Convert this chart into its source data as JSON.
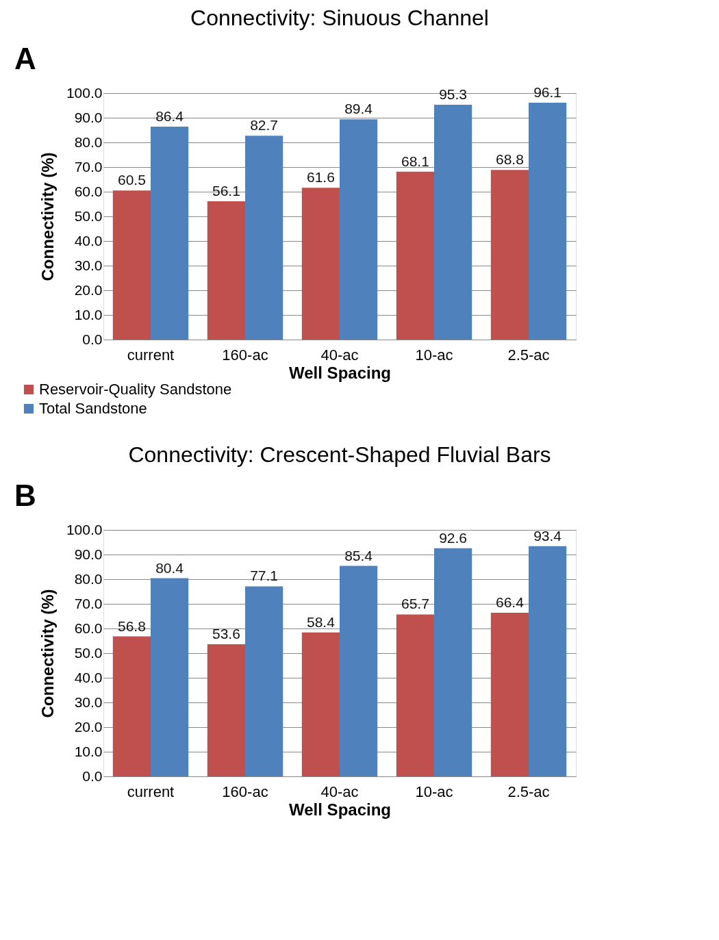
{
  "chart_data": [
    {
      "type": "bar",
      "title": "Connectivity: Sinuous Channel",
      "xlabel": "Well Spacing",
      "ylabel": "Connectivity (%)",
      "annotations": [
        "A"
      ],
      "categories": [
        "current",
        "160-ac",
        "40-ac",
        "10-ac",
        "2.5-ac"
      ],
      "series": [
        {
          "name": "Reservoir-Quality Sandstone",
          "color": "#c0504d",
          "values": [
            60.5,
            56.1,
            61.6,
            68.1,
            68.8
          ]
        },
        {
          "name": "Total Sandstone",
          "color": "#4f81bd",
          "values": [
            86.4,
            82.7,
            89.4,
            95.3,
            96.1
          ]
        }
      ],
      "ylim": [
        0,
        100
      ],
      "yticks": [
        {
          "value": 0,
          "label": "0.0"
        },
        {
          "value": 10,
          "label": "10.0"
        },
        {
          "value": 20,
          "label": "20.0"
        },
        {
          "value": 30,
          "label": "30.0"
        },
        {
          "value": 40,
          "label": "40.0"
        },
        {
          "value": 50,
          "label": "50.0"
        },
        {
          "value": 60,
          "label": "60.0"
        },
        {
          "value": 70,
          "label": "70.0"
        },
        {
          "value": 80,
          "label": "80.0"
        },
        {
          "value": 90,
          "label": "90.0"
        },
        {
          "value": 100,
          "label": "100.0"
        }
      ],
      "grid": "y",
      "legend": "bottom left",
      "data_labels": true
    },
    {
      "type": "bar",
      "title": "Connectivity: Crescent-Shaped Fluvial Bars",
      "xlabel": "Well Spacing",
      "ylabel": "Connectivity (%)",
      "annotations": [
        "B"
      ],
      "categories": [
        "current",
        "160-ac",
        "40-ac",
        "10-ac",
        "2.5-ac"
      ],
      "series": [
        {
          "name": "Reservoir-Quality Sandstone",
          "color": "#c0504d",
          "values": [
            56.8,
            53.6,
            58.4,
            65.7,
            66.4
          ]
        },
        {
          "name": "Total Sandstone",
          "color": "#4f81bd",
          "values": [
            80.4,
            77.1,
            85.4,
            92.6,
            93.4
          ]
        }
      ],
      "ylim": [
        0,
        100
      ],
      "yticks": [
        {
          "value": 0,
          "label": "0.0"
        },
        {
          "value": 10,
          "label": "10.0"
        },
        {
          "value": 20,
          "label": "20.0"
        },
        {
          "value": 30,
          "label": "30.0"
        },
        {
          "value": 40,
          "label": "40.0"
        },
        {
          "value": 50,
          "label": "50.0"
        },
        {
          "value": 60,
          "label": "60.0"
        },
        {
          "value": 70,
          "label": "70.0"
        },
        {
          "value": 80,
          "label": "80.0"
        },
        {
          "value": 90,
          "label": "90.0"
        },
        {
          "value": 100,
          "label": "100.0"
        }
      ],
      "grid": "y",
      "legend": "bottom left",
      "data_labels": true
    }
  ]
}
